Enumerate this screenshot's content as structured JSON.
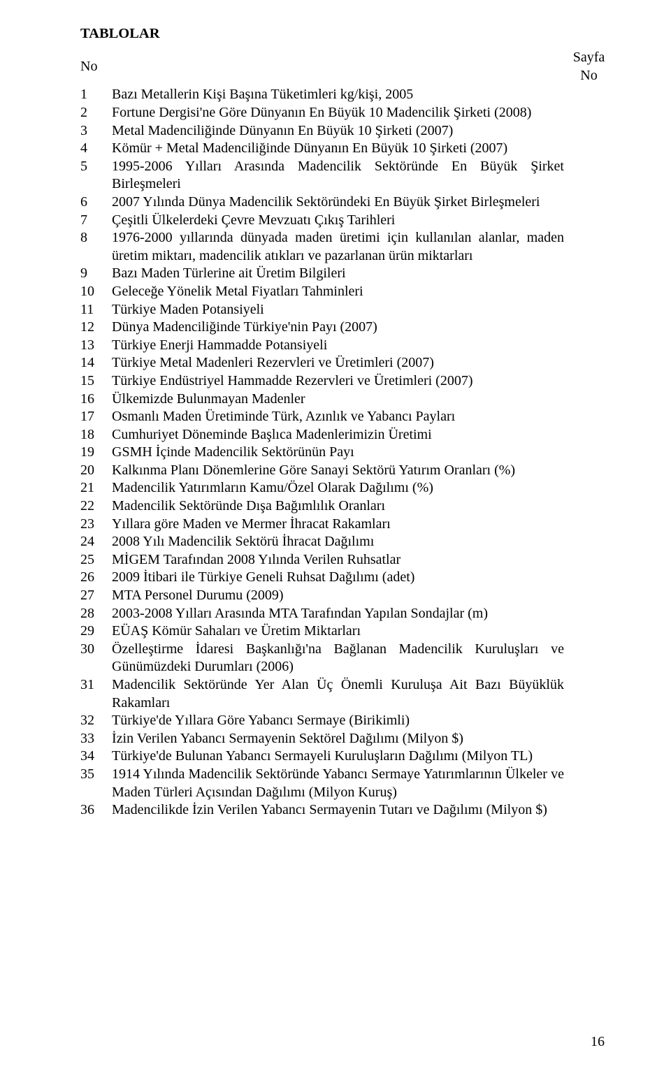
{
  "title": "TABLOLAR",
  "header": {
    "no_label": "No",
    "page_top": "Sayfa",
    "page_bottom": "No"
  },
  "page_number": "16",
  "rows": [
    {
      "no": "1",
      "desc": "Bazı Metallerin Kişi Başına Tüketimleri kg/kişi, 2005"
    },
    {
      "no": "2",
      "desc": "Fortune Dergisi'ne Göre Dünyanın En Büyük 10 Madencilik Şirketi (2008)"
    },
    {
      "no": "3",
      "desc": "Metal Madenciliğinde Dünyanın En Büyük 10 Şirketi (2007)"
    },
    {
      "no": "4",
      "desc": "Kömür + Metal Madenciliğinde Dünyanın En Büyük 10 Şirketi (2007)"
    },
    {
      "no": "5",
      "desc": "1995-2006 Yılları Arasında Madencilik Sektöründe En Büyük Şirket Birleşmeleri"
    },
    {
      "no": "6",
      "desc": "2007 Yılında Dünya Madencilik Sektöründeki En Büyük Şirket Birleşmeleri"
    },
    {
      "no": "7",
      "desc": "Çeşitli Ülkelerdeki Çevre Mevzuatı Çıkış Tarihleri"
    },
    {
      "no": "8",
      "desc": "1976-2000 yıllarında dünyada maden üretimi için kullanılan alanlar, maden üretim miktarı, madencilik atıkları ve pazarlanan ürün miktarları"
    },
    {
      "no": "9",
      "desc": "Bazı Maden Türlerine ait Üretim Bilgileri"
    },
    {
      "no": "10",
      "desc": "Geleceğe Yönelik Metal Fiyatları Tahminleri"
    },
    {
      "no": "11",
      "desc": "Türkiye Maden Potansiyeli"
    },
    {
      "no": "12",
      "desc": "Dünya Madenciliğinde Türkiye'nin Payı (2007)"
    },
    {
      "no": "13",
      "desc": "Türkiye Enerji Hammadde Potansiyeli"
    },
    {
      "no": "14",
      "desc": "Türkiye Metal Madenleri Rezervleri ve Üretimleri (2007)"
    },
    {
      "no": "15",
      "desc": "Türkiye Endüstriyel Hammadde Rezervleri ve Üretimleri (2007)"
    },
    {
      "no": "16",
      "desc": "Ülkemizde Bulunmayan Madenler"
    },
    {
      "no": "17",
      "desc": "Osmanlı Maden Üretiminde Türk, Azınlık ve Yabancı Payları"
    },
    {
      "no": "18",
      "desc": "Cumhuriyet Döneminde Başlıca Madenlerimizin Üretimi"
    },
    {
      "no": "19",
      "desc": "GSMH İçinde Madencilik Sektörünün Payı"
    },
    {
      "no": "20",
      "desc": "Kalkınma Planı Dönemlerine Göre Sanayi Sektörü  Yatırım Oranları (%)"
    },
    {
      "no": "21",
      "desc": "Madencilik Yatırımların Kamu/Özel Olarak Dağılımı (%)"
    },
    {
      "no": "22",
      "desc": "Madencilik Sektöründe Dışa Bağımlılık Oranları"
    },
    {
      "no": "23",
      "desc": "Yıllara göre Maden ve Mermer İhracat Rakamları"
    },
    {
      "no": "24",
      "desc": "2008 Yılı Madencilik Sektörü İhracat Dağılımı"
    },
    {
      "no": "25",
      "desc": "MİGEM Tarafından 2008 Yılında Verilen Ruhsatlar"
    },
    {
      "no": "26",
      "desc": "2009 İtibari ile Türkiye Geneli Ruhsat Dağılımı (adet)"
    },
    {
      "no": "27",
      "desc": "MTA Personel Durumu (2009)"
    },
    {
      "no": "28",
      "desc": "2003-2008 Yılları Arasında MTA Tarafından Yapılan Sondajlar (m)"
    },
    {
      "no": "29",
      "desc": "EÜAŞ Kömür Sahaları ve Üretim Miktarları"
    },
    {
      "no": "30",
      "desc": "Özelleştirme İdaresi Başkanlığı'na Bağlanan Madencilik Kuruluşları ve Günümüzdeki Durumları (2006)"
    },
    {
      "no": "31",
      "desc": "Madencilik Sektöründe Yer Alan Üç Önemli Kuruluşa Ait Bazı Büyüklük Rakamları"
    },
    {
      "no": "32",
      "desc": "Türkiye'de Yıllara Göre Yabancı Sermaye (Birikimli)"
    },
    {
      "no": "33",
      "desc": "İzin Verilen Yabancı Sermayenin Sektörel Dağılımı (Milyon $)"
    },
    {
      "no": "34",
      "desc": "Türkiye'de Bulunan Yabancı Sermayeli Kuruluşların Dağılımı (Milyon TL)"
    },
    {
      "no": "35",
      "desc": "1914 Yılında Madencilik Sektöründe Yabancı Sermaye Yatırımlarının Ülkeler ve Maden Türleri Açısından Dağılımı (Milyon Kuruş)"
    },
    {
      "no": "36",
      "desc": "Madencilikde İzin Verilen Yabancı Sermayenin Tutarı ve Dağılımı (Milyon $)"
    }
  ]
}
